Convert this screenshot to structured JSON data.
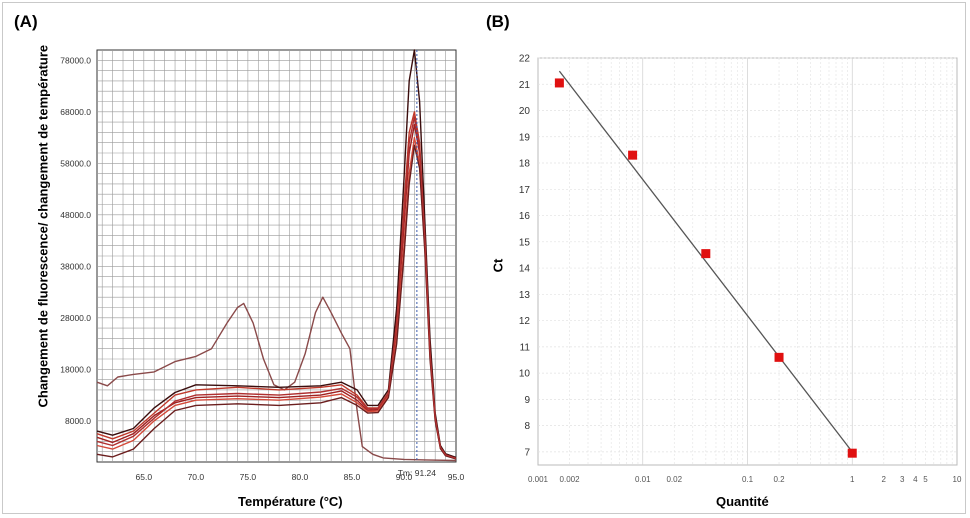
{
  "panel_a": {
    "label": "(A)"
  },
  "panel_b": {
    "label": "(B)"
  },
  "chart_data": [
    {
      "type": "line",
      "panel": "(A)",
      "xlabel": "Température (°C)",
      "ylabel": "Changement de fluorescence/ changement de température",
      "xlim": [
        60.5,
        95.0
      ],
      "ylim": [
        0,
        80000
      ],
      "x_ticks": [
        "65.0",
        "70.0",
        "75.0",
        "80.0",
        "85.0",
        "90.0",
        "95.0"
      ],
      "y_ticks": [
        "8000.0",
        "18000.0",
        "28000.0",
        "38000.0",
        "48000.0",
        "58000.0",
        "68000.0",
        "78000.0"
      ],
      "x_tick_values": [
        65,
        70,
        75,
        80,
        85,
        90,
        95
      ],
      "y_tick_values": [
        8000,
        18000,
        28000,
        38000,
        48000,
        58000,
        68000,
        78000
      ],
      "grid": true,
      "annotation": {
        "text": "Tm: 91.24",
        "x": 91.24
      },
      "colors": {
        "primary": "#c0392b",
        "dark": "#3a0d0d",
        "nonspecific": "#8a4a4a"
      },
      "series": [
        {
          "color": "#8a4a4a",
          "x": [
            60.5,
            61.5,
            62.5,
            64,
            66,
            68,
            70,
            71.5,
            73,
            74,
            74.6,
            75.5,
            76.5,
            77.5,
            78.5,
            79.5,
            80.5,
            81.5,
            82.2,
            83,
            84,
            84.8,
            85.5,
            86,
            87,
            88,
            90,
            92,
            95
          ],
          "y": [
            15500,
            14800,
            16500,
            17000,
            17500,
            19500,
            20500,
            22000,
            27000,
            30000,
            30800,
            27000,
            20000,
            15000,
            14000,
            15500,
            21000,
            29000,
            32000,
            29000,
            25000,
            22000,
            10000,
            3000,
            1500,
            800,
            500,
            400,
            300
          ]
        },
        {
          "color": "#c0392b",
          "x": [
            60.5,
            62,
            64,
            66,
            68,
            70,
            74,
            78,
            82,
            84,
            85.5,
            86.5,
            87.5,
            88.5,
            89.3,
            90,
            90.5,
            91,
            91.5,
            92,
            92.5,
            93,
            93.5,
            94,
            95
          ],
          "y": [
            5500,
            4500,
            6000,
            9500,
            13000,
            14000,
            14500,
            14000,
            14500,
            15000,
            13000,
            10500,
            10500,
            13500,
            28000,
            50000,
            64000,
            68000,
            62000,
            44000,
            22000,
            9000,
            3000,
            1500,
            800
          ]
        },
        {
          "color": "#a02020",
          "x": [
            60.5,
            62,
            64,
            66,
            68,
            70,
            74,
            78,
            82,
            84,
            85.5,
            86.5,
            87.5,
            88.5,
            89.3,
            90,
            90.5,
            91,
            91.5,
            92,
            92.5,
            93,
            93.5,
            94,
            95
          ],
          "y": [
            4800,
            3800,
            5500,
            9000,
            11500,
            12500,
            12800,
            12500,
            13000,
            13800,
            12000,
            10000,
            10200,
            13200,
            26000,
            46000,
            60000,
            65500,
            60000,
            43000,
            21000,
            8500,
            2800,
            1400,
            700
          ]
        },
        {
          "color": "#3a0d0d",
          "x": [
            60.5,
            62,
            64,
            66,
            68,
            70,
            74,
            78,
            82,
            84,
            85.5,
            86.5,
            87.5,
            88.5,
            89.3,
            90,
            90.5,
            91,
            91.5,
            92,
            92.5,
            93,
            93.5,
            94,
            95
          ],
          "y": [
            6000,
            5200,
            6500,
            10500,
            13500,
            15000,
            14800,
            14500,
            14800,
            15500,
            14000,
            11000,
            11000,
            14000,
            30000,
            55000,
            74000,
            80000,
            70000,
            47000,
            24000,
            9500,
            3200,
            1600,
            900
          ]
        },
        {
          "color": "#d44a3a",
          "x": [
            60.5,
            62,
            64,
            66,
            68,
            70,
            74,
            78,
            82,
            84,
            85.5,
            86.5,
            87.5,
            88.5,
            89.3,
            90,
            90.5,
            91,
            91.5,
            92,
            92.5,
            93,
            93.5,
            94,
            95
          ],
          "y": [
            3200,
            2500,
            4200,
            8000,
            11000,
            12000,
            12300,
            12000,
            12600,
            13200,
            11500,
            9800,
            9900,
            12800,
            24000,
            42000,
            56000,
            63000,
            58000,
            42000,
            20500,
            8200,
            2700,
            1300,
            700
          ]
        },
        {
          "color": "#6b1e1e",
          "x": [
            60.5,
            62,
            64,
            66,
            68,
            70,
            74,
            78,
            82,
            84,
            85.5,
            86.5,
            87.5,
            88.5,
            89.3,
            90,
            90.5,
            91,
            91.5,
            92,
            92.5,
            93,
            93.5,
            94,
            95
          ],
          "y": [
            1500,
            1000,
            2500,
            6500,
            10000,
            11000,
            11300,
            11000,
            11500,
            12500,
            11000,
            9500,
            9600,
            12500,
            23000,
            40000,
            54000,
            61500,
            57000,
            41000,
            20000,
            8000,
            2600,
            1200,
            600
          ]
        },
        {
          "color": "#b03030",
          "x": [
            60.5,
            62,
            64,
            66,
            68,
            70,
            74,
            78,
            82,
            84,
            85.5,
            86.5,
            87.5,
            88.5,
            89.3,
            90,
            90.5,
            91,
            91.5,
            92,
            92.5,
            93,
            93.5,
            94,
            95
          ],
          "y": [
            4000,
            3200,
            5000,
            8500,
            11800,
            13000,
            13300,
            13000,
            13600,
            14300,
            12600,
            10300,
            10400,
            13300,
            27000,
            48000,
            62000,
            67000,
            61000,
            44000,
            21500,
            8700,
            2900,
            1400,
            700
          ]
        }
      ]
    },
    {
      "type": "scatter",
      "panel": "(B)",
      "xlabel": "Quantité",
      "ylabel": "Ct",
      "x_scale": "log",
      "xlim": [
        0.001,
        10
      ],
      "ylim": [
        6.5,
        22
      ],
      "x_ticks": [
        "0.001",
        "0.002",
        "0.01",
        "0.02",
        "0.1",
        "0.2",
        "1",
        "2",
        "3",
        "4",
        "5",
        "10"
      ],
      "x_tick_values": [
        0.001,
        0.002,
        0.01,
        0.02,
        0.1,
        0.2,
        1,
        2,
        3,
        4,
        5,
        10
      ],
      "y_ticks": [
        "7",
        "8",
        "9",
        "10",
        "11",
        "12",
        "13",
        "14",
        "15",
        "16",
        "17",
        "18",
        "19",
        "20",
        "21",
        "22"
      ],
      "y_tick_values": [
        7,
        8,
        9,
        10,
        11,
        12,
        13,
        14,
        15,
        16,
        17,
        18,
        19,
        20,
        21,
        22
      ],
      "grid": true,
      "marker_color": "#e01010",
      "line_color": "#555555",
      "points": {
        "x": [
          0.0016,
          0.008,
          0.04,
          0.2,
          1.0
        ],
        "y": [
          21.05,
          18.3,
          14.55,
          10.6,
          6.95
        ]
      },
      "fit_line": {
        "x": [
          0.0016,
          1.0
        ],
        "y": [
          21.5,
          7.0
        ]
      }
    }
  ]
}
